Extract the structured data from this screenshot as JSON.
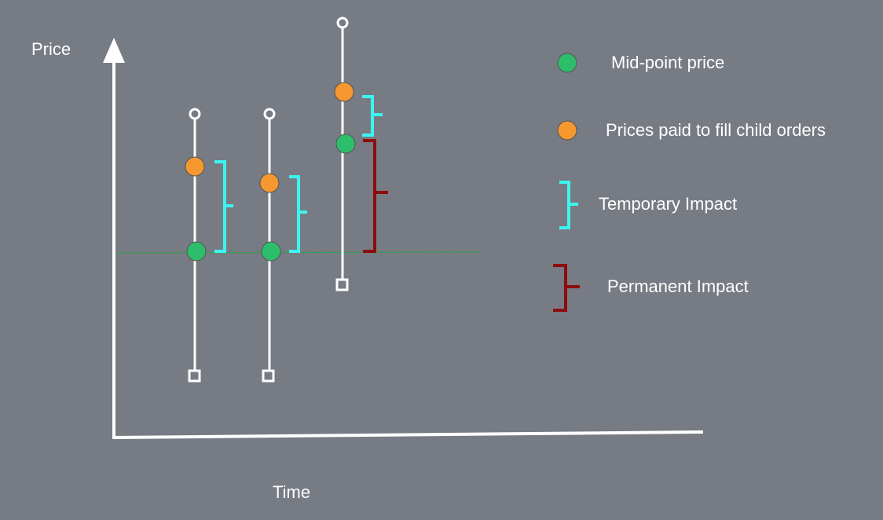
{
  "axes": {
    "y_label": "Price",
    "x_label": "Time"
  },
  "legend": [
    {
      "key": "midpoint",
      "label": "Mid-point price",
      "symbol": "dot",
      "color": "#2dbe6c"
    },
    {
      "key": "paid",
      "label": "Prices paid to fill child orders",
      "symbol": "dot",
      "color": "#f7972f"
    },
    {
      "key": "temporary",
      "label": "Temporary Impact",
      "symbol": "brace",
      "color": "#3cf5f0"
    },
    {
      "key": "permanent",
      "label": "Permanent Impact",
      "symbol": "brace",
      "color": "#8b0d0d"
    }
  ],
  "colors": {
    "background": "#777b83",
    "axis": "#ffffff",
    "baseline": "#2e9e4f",
    "midpoint": "#2dbe6c",
    "paid": "#f7972f",
    "temporary": "#3cf5f0",
    "permanent": "#8b0d0d"
  },
  "bars": [
    {
      "index": 1,
      "temporary_brace": true,
      "permanent_brace": false
    },
    {
      "index": 2,
      "temporary_brace": true,
      "permanent_brace": false
    },
    {
      "index": 3,
      "temporary_brace": true,
      "permanent_brace": true
    }
  ]
}
